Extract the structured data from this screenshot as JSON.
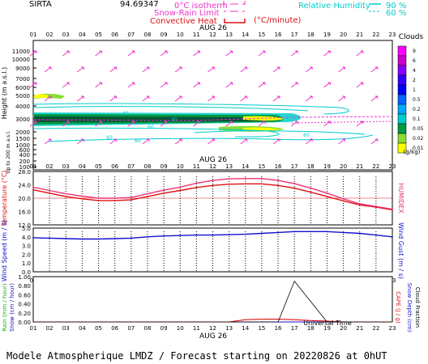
{
  "header": {
    "station": "SIRTA",
    "coord": "94.69347",
    "legend_iso": "0°C isotherm",
    "legend_snow": "Snow-Rain Limit",
    "legend_conv": "Convective Heat",
    "legend_conv_unit": "(°C/minute)",
    "legend_rh": "Relative Humidity",
    "rh_90": "90 %",
    "rh_60": "60 %"
  },
  "hours": [
    "01",
    "02",
    "03",
    "04",
    "05",
    "06",
    "07",
    "08",
    "09",
    "10",
    "11",
    "12",
    "13",
    "14",
    "15",
    "16",
    "17",
    "18",
    "19",
    "20",
    "21",
    "22",
    "23"
  ],
  "date_label": "AUG 26",
  "clouds": {
    "title": "Clouds",
    "unit": "(g/kg)",
    "levels": [
      "9",
      "6",
      "4",
      "2",
      "1",
      "0.5",
      "0.2",
      "0.1",
      "0.05",
      "0.02",
      "0.01"
    ],
    "colors": [
      "#ff00ff",
      "#cc00cc",
      "#8800ff",
      "#3300ff",
      "#0000ff",
      "#0066ff",
      "#00aaff",
      "#00cccc",
      "#009944",
      "#88dd33",
      "#ffff00"
    ]
  },
  "panel1": {
    "ylabel": "Height (m a.s.l.)",
    "side_label": "Up to 200 m a.s.l.",
    "yticks": [
      "11000",
      "10000",
      "9000",
      "7000",
      "6000",
      "5000",
      "4000",
      "3000",
      "2000",
      "1500",
      "1000",
      "600",
      "400",
      "200",
      "100"
    ],
    "iso_labels": [
      "60",
      "90",
      "60",
      "60",
      "60",
      "60"
    ]
  },
  "panel2": {
    "ylabel": "Temperature (°C)",
    "right_label": "HUMIDEX",
    "yticks": [
      "28.0",
      "24.0",
      "20.0",
      "16.0",
      "12.0"
    ]
  },
  "panel3": {
    "ylabel": "Wind Speed (m / s)",
    "right_label": "Wind Gust (m / s)",
    "yticks": [
      "5.0",
      "4.0",
      "3.0",
      "2.0",
      "1.0",
      "0.0"
    ]
  },
  "panel4": {
    "ylabel_rain": "Rain (mm / hour)",
    "ylabel_snow": "Snow (cm / hour)",
    "right_cape": "CAPE (J / g)",
    "right_snowdepth": "Snow Depth (cm)",
    "right_cloud": "Cloud Fraction",
    "yticks": [
      "1.00",
      "0.80",
      "0.60",
      "0.40",
      "0.20",
      "0.00"
    ]
  },
  "xaxis_label": "Universal Time",
  "footer": "Modele Atmospherique LMDZ / Forecast starting on 20220826 at 0hUT",
  "chart_data": [
    {
      "type": "line",
      "name": "temperature",
      "x": [
        "01",
        "02",
        "03",
        "04",
        "05",
        "06",
        "07",
        "08",
        "09",
        "10",
        "11",
        "12",
        "13",
        "14",
        "15",
        "16",
        "17",
        "18",
        "19",
        "20",
        "21",
        "22",
        "23"
      ],
      "series": [
        {
          "values": [
            22.5,
            21.5,
            20.5,
            19.8,
            19.3,
            19.3,
            19.5,
            20.5,
            21.5,
            22.3,
            23.2,
            23.8,
            24.2,
            24.3,
            24.3,
            23.8,
            23.0,
            21.8,
            20.5,
            19.2,
            18.0,
            17.3,
            16.5
          ]
        },
        {
          "values": [
            23.3,
            22.3,
            21.3,
            20.6,
            20.0,
            20.0,
            20.2,
            21.3,
            22.4,
            23.3,
            24.5,
            25.3,
            25.8,
            25.9,
            25.9,
            25.3,
            24.4,
            23.0,
            21.5,
            19.8,
            18.3,
            17.5,
            16.7
          ]
        }
      ],
      "ylim": [
        12,
        28
      ],
      "reference": 20.0
    },
    {
      "type": "line",
      "name": "wind",
      "x": [
        "01",
        "02",
        "03",
        "04",
        "05",
        "06",
        "07",
        "08",
        "09",
        "10",
        "11",
        "12",
        "13",
        "14",
        "15",
        "16",
        "17",
        "18",
        "19",
        "20",
        "21",
        "22",
        "23"
      ],
      "series": [
        {
          "values": [
            3.9,
            3.85,
            3.8,
            3.75,
            3.75,
            3.8,
            3.85,
            4.0,
            4.1,
            4.15,
            4.2,
            4.2,
            4.25,
            4.3,
            4.4,
            4.5,
            4.6,
            4.6,
            4.6,
            4.5,
            4.4,
            4.2,
            4.0
          ]
        }
      ],
      "ylim": [
        0,
        5
      ]
    },
    {
      "type": "line",
      "name": "precip",
      "x": [
        "01",
        "02",
        "03",
        "04",
        "05",
        "06",
        "07",
        "08",
        "09",
        "10",
        "11",
        "12",
        "13",
        "14",
        "15",
        "16",
        "17",
        "18",
        "19",
        "20",
        "21",
        "22",
        "23"
      ],
      "series": [
        {
          "values": [
            0,
            0,
            0,
            0,
            0,
            0,
            0,
            0,
            0,
            0,
            0,
            0,
            0,
            0,
            0,
            0,
            0,
            0,
            0,
            0,
            0,
            0,
            0
          ]
        },
        {
          "values": [
            0,
            0,
            0,
            0,
            0,
            0,
            0,
            0,
            0,
            0,
            0,
            0,
            0,
            0.05,
            0.06,
            0.06,
            0.05,
            0.03,
            0.02,
            0,
            0,
            0,
            0
          ]
        },
        {
          "values": [
            0,
            0,
            0,
            0,
            0,
            0,
            0,
            0,
            0,
            0,
            0,
            0,
            0,
            0,
            0,
            0,
            0.9,
            0.45,
            0,
            0,
            0,
            0,
            0
          ]
        }
      ],
      "ylim": [
        0,
        1
      ]
    }
  ]
}
